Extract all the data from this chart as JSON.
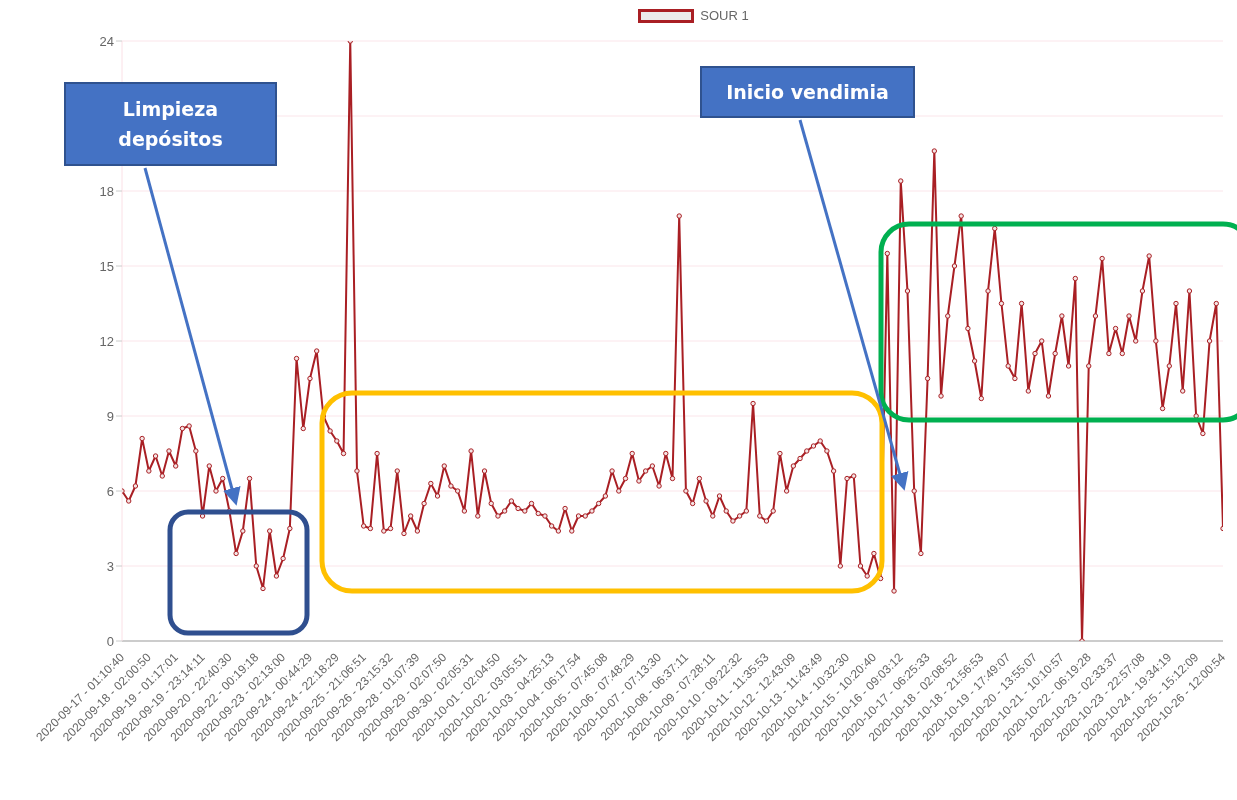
{
  "chart_data": {
    "type": "line",
    "categories": [
      "2020-09-17 - 01:10:40",
      null,
      null,
      null,
      "2020-09-18 - 02:00:50",
      null,
      null,
      null,
      "2020-09-19 - 01:17:01",
      null,
      null,
      null,
      "2020-09-19 - 23:14:11",
      null,
      null,
      null,
      "2020-09-20 - 22:40:30",
      null,
      null,
      null,
      "2020-09-22 - 00:19:18",
      null,
      null,
      null,
      "2020-09-23 - 02:13:00",
      null,
      null,
      null,
      "2020-09-24 - 00:44:29",
      null,
      null,
      null,
      "2020-09-24 - 22:18:29",
      null,
      null,
      null,
      "2020-09-25 - 21:06:51",
      null,
      null,
      null,
      "2020-09-26 - 23:15:32",
      null,
      null,
      null,
      "2020-09-28 - 01:07:39",
      null,
      null,
      null,
      "2020-09-29 - 02:07:50",
      null,
      null,
      null,
      "2020-09-30 - 02:05:31",
      null,
      null,
      null,
      "2020-10-01 - 02:04:50",
      null,
      null,
      null,
      "2020-10-02 - 03:05:51",
      null,
      null,
      null,
      "2020-10-03 - 04:25:13",
      null,
      null,
      null,
      "2020-10-04 - 06:17:54",
      null,
      null,
      null,
      "2020-10-05 - 07:45:08",
      null,
      null,
      null,
      "2020-10-06 - 07:48:29",
      null,
      null,
      null,
      "2020-10-07 - 07:13:30",
      null,
      null,
      null,
      "2020-10-08 - 06:37:11",
      null,
      null,
      null,
      "2020-10-09 - 07:28:11",
      null,
      null,
      null,
      "2020-10-10 - 09:22:32",
      null,
      null,
      null,
      "2020-10-11 - 11:35:53",
      null,
      null,
      null,
      "2020-10-12 - 12:43:09",
      null,
      null,
      null,
      "2020-10-13 - 11:43:49",
      null,
      null,
      null,
      "2020-10-14 - 10:32:30",
      null,
      null,
      null,
      "2020-10-15 - 10:20:40",
      null,
      null,
      null,
      "2020-10-16 - 09:03:12",
      null,
      null,
      null,
      "2020-10-17 - 06:25:33",
      null,
      null,
      null,
      "2020-10-18 - 02:08:52",
      null,
      null,
      null,
      "2020-10-18 - 21:56:53",
      null,
      null,
      null,
      "2020-10-19 - 17:49:07",
      null,
      null,
      null,
      "2020-10-20 - 13:55:07",
      null,
      null,
      null,
      "2020-10-21 - 10:10:57",
      null,
      null,
      null,
      "2020-10-22 - 06:19:28",
      null,
      null,
      null,
      "2020-10-23 - 02:33:37",
      null,
      null,
      null,
      "2020-10-23 - 22:57:08",
      null,
      null,
      null,
      "2020-10-24 - 19:34:19",
      null,
      null,
      null,
      "2020-10-25 - 15:12:09",
      null,
      null,
      null,
      "2020-10-26 - 12:00:54"
    ],
    "series": [
      {
        "name": "SOUR 1",
        "color": "#a91f24",
        "values": [
          6,
          5.6,
          6.2,
          8.1,
          6.8,
          7.4,
          6.6,
          7.6,
          7,
          8.5,
          8.6,
          7.6,
          5,
          7,
          6,
          6.5,
          5.2,
          3.5,
          4.4,
          6.5,
          3,
          2.1,
          4.4,
          2.6,
          3.3,
          4.5,
          11.3,
          8.5,
          10.5,
          11.6,
          9,
          8.4,
          8,
          7.5,
          24,
          6.8,
          4.6,
          4.5,
          7.5,
          4.4,
          4.5,
          6.8,
          4.3,
          5,
          4.4,
          5.5,
          6.3,
          5.8,
          7,
          6.2,
          6,
          5.2,
          7.6,
          5,
          6.8,
          5.5,
          5,
          5.2,
          5.6,
          5.3,
          5.2,
          5.5,
          5.1,
          5,
          4.6,
          4.4,
          5.3,
          4.4,
          5,
          5,
          5.2,
          5.5,
          5.8,
          6.8,
          6,
          6.5,
          7.5,
          6.4,
          6.8,
          7,
          6.2,
          7.5,
          6.5,
          17,
          6,
          5.5,
          6.5,
          5.6,
          5,
          5.8,
          5.2,
          4.8,
          5,
          5.2,
          9.5,
          5,
          4.8,
          5.2,
          7.5,
          6,
          7,
          7.3,
          7.6,
          7.8,
          8,
          7.6,
          6.8,
          3,
          6.5,
          6.6,
          3,
          2.6,
          3.5,
          2.5,
          15.5,
          2,
          18.4,
          14,
          6,
          3.5,
          10.5,
          19.6,
          9.8,
          13,
          15,
          17,
          12.5,
          11.2,
          9.7,
          14,
          16.5,
          13.5,
          11,
          10.5,
          13.5,
          10,
          11.5,
          12,
          9.8,
          11.5,
          13,
          11,
          14.5,
          0,
          11,
          13,
          15.3,
          11.5,
          12.5,
          11.5,
          13,
          12,
          14,
          15.4,
          12,
          9.3,
          11,
          13.5,
          10,
          14,
          9,
          8.3,
          12,
          13.5,
          4.5
        ]
      }
    ],
    "ylim": [
      0,
      24
    ],
    "yticks": [
      0,
      3,
      6,
      9,
      12,
      15,
      18,
      {
        "value": 21,
        "label": null
      },
      24
    ],
    "grid": "y",
    "legend": "top",
    "marker": "circle",
    "line_style": "solid",
    "annotations": [
      "Limpieza depósitos",
      "Inicio vendimia"
    ]
  }
}
